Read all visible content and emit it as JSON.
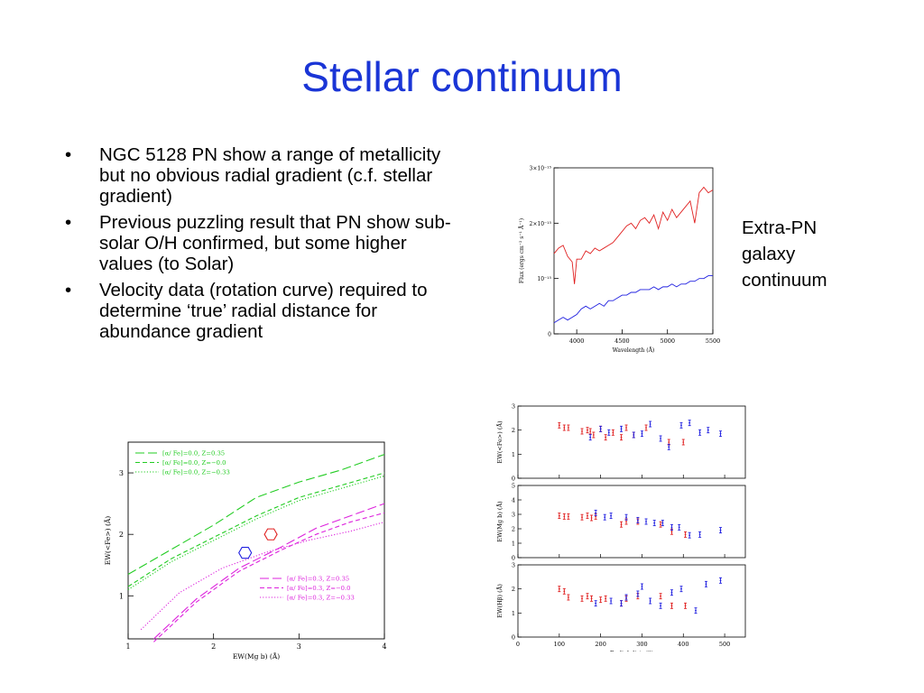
{
  "slide": {
    "title": "Stellar continuum",
    "bullets": [
      "NGC 5128 PN show a range of metallicity but no obvious radial gradient (c.f. stellar gradient)",
      "Previous puzzling result that PN show sub-solar O/H confirmed, but some higher values (to Solar)",
      "Velocity data (rotation curve) required to determine ‘true’ radial distance for abundance gradient"
    ],
    "bullet_marker": "•",
    "side_caption": "Extra-PN galaxy continuum"
  },
  "colors": {
    "title": "#1a35d6",
    "red": "#e02020",
    "blue": "#2020e0",
    "green": "#22cc22",
    "magenta": "#dd22dd"
  },
  "chart_data": [
    {
      "type": "line",
      "xlabel": "Wavelength (Å)",
      "ylabel": "Flux (ergs cm⁻² s⁻¹ Å⁻¹)",
      "x_ticks": [
        "4000",
        "4500",
        "5000",
        "5500"
      ],
      "y_ticks": [
        "0",
        "10⁻¹⁵",
        "2×10⁻¹⁵",
        "3×10⁻¹⁵"
      ],
      "xlim": [
        3750,
        5500
      ],
      "ylim": [
        0,
        3.0
      ],
      "grid": false,
      "series": [
        {
          "color": "#e02020",
          "x": [
            3750,
            3800,
            3850,
            3900,
            3950,
            3975,
            4000,
            4050,
            4100,
            4150,
            4200,
            4250,
            4300,
            4350,
            4400,
            4450,
            4500,
            4550,
            4600,
            4650,
            4700,
            4750,
            4800,
            4850,
            4900,
            4950,
            5000,
            5050,
            5100,
            5150,
            5200,
            5250,
            5300,
            5350,
            5400,
            5450,
            5500
          ],
          "values": [
            1.45,
            1.55,
            1.6,
            1.4,
            1.3,
            0.9,
            1.35,
            1.35,
            1.5,
            1.45,
            1.55,
            1.5,
            1.55,
            1.6,
            1.65,
            1.75,
            1.85,
            1.95,
            2.0,
            1.9,
            2.05,
            2.1,
            2.0,
            2.15,
            1.9,
            2.2,
            2.05,
            2.25,
            2.1,
            2.2,
            2.3,
            2.4,
            2.0,
            2.55,
            2.65,
            2.55,
            2.6
          ]
        },
        {
          "color": "#2020e0",
          "x": [
            3750,
            3800,
            3850,
            3900,
            3950,
            4000,
            4050,
            4100,
            4150,
            4200,
            4250,
            4300,
            4350,
            4400,
            4450,
            4500,
            4550,
            4600,
            4650,
            4700,
            4750,
            4800,
            4850,
            4900,
            4950,
            5000,
            5050,
            5100,
            5150,
            5200,
            5250,
            5300,
            5350,
            5400,
            5450,
            5500
          ],
          "values": [
            0.2,
            0.25,
            0.3,
            0.25,
            0.3,
            0.35,
            0.45,
            0.5,
            0.45,
            0.5,
            0.55,
            0.5,
            0.6,
            0.6,
            0.65,
            0.7,
            0.7,
            0.75,
            0.75,
            0.8,
            0.8,
            0.8,
            0.85,
            0.8,
            0.85,
            0.85,
            0.9,
            0.85,
            0.9,
            0.9,
            0.95,
            0.95,
            1.0,
            1.0,
            1.05,
            1.05
          ]
        }
      ]
    },
    {
      "type": "line",
      "xlabel": "EW(Mg b) (Å)",
      "ylabel": "EW(<Fe>) (Å)",
      "x_ticks": [
        "1",
        "2",
        "3",
        "4"
      ],
      "y_ticks": [
        "1",
        "2",
        "3"
      ],
      "xlim": [
        1,
        4
      ],
      "ylim": [
        0.3,
        3.5
      ],
      "grid": false,
      "legend_top": [
        {
          "label": "[α/ Fe]=0.0, Z=0.35",
          "color": "#22cc22",
          "dash": "long"
        },
        {
          "label": "[α/ Fe]=0.0, Z=−0.0",
          "color": "#22cc22",
          "dash": "short"
        },
        {
          "label": "[α/ Fe]=0.0, Z=−0.33",
          "color": "#22cc22",
          "dash": "dot"
        }
      ],
      "legend_bottom": [
        {
          "label": "[α/ Fe]=0.3, Z=0.35",
          "color": "#dd22dd",
          "dash": "long"
        },
        {
          "label": "[α/ Fe]=0.3, Z=−0.0",
          "color": "#dd22dd",
          "dash": "short"
        },
        {
          "label": "[α/ Fe]=0.3, Z=−0.33",
          "color": "#dd22dd",
          "dash": "dot"
        }
      ],
      "series": [
        {
          "color": "#22cc22",
          "dash": "long",
          "x": [
            1,
            1.5,
            2,
            2.5,
            3,
            3.5,
            4
          ],
          "values": [
            1.35,
            1.75,
            2.15,
            2.6,
            2.85,
            3.05,
            3.3
          ]
        },
        {
          "color": "#22cc22",
          "dash": "short",
          "x": [
            1,
            1.5,
            2,
            2.5,
            3,
            3.5,
            4
          ],
          "values": [
            1.15,
            1.6,
            1.95,
            2.3,
            2.6,
            2.8,
            3.0
          ]
        },
        {
          "color": "#22cc22",
          "dash": "dot",
          "x": [
            1,
            1.5,
            2,
            2.5,
            3,
            3.5,
            4
          ],
          "values": [
            1.1,
            1.55,
            1.9,
            2.25,
            2.55,
            2.75,
            2.95
          ]
        },
        {
          "color": "#dd22dd",
          "dash": "long",
          "x": [
            1.3,
            1.8,
            2.3,
            2.8,
            3.2,
            3.6,
            4
          ],
          "values": [
            0.3,
            0.95,
            1.45,
            1.8,
            2.1,
            2.3,
            2.5
          ]
        },
        {
          "color": "#dd22dd",
          "dash": "short",
          "x": [
            1.3,
            1.8,
            2.3,
            2.8,
            3.2,
            3.6,
            4
          ],
          "values": [
            0.25,
            0.9,
            1.4,
            1.75,
            2.0,
            2.2,
            2.35
          ]
        },
        {
          "color": "#dd22dd",
          "dash": "dot",
          "x": [
            1.15,
            1.6,
            2.1,
            2.6,
            3.1,
            3.6,
            4
          ],
          "values": [
            0.45,
            1.05,
            1.45,
            1.7,
            1.9,
            2.05,
            2.2
          ]
        }
      ],
      "markers": [
        {
          "shape": "hexagon",
          "color": "#e02020",
          "x": 2.67,
          "y": 2.0
        },
        {
          "shape": "hexagon",
          "color": "#2020e0",
          "x": 2.37,
          "y": 1.7
        }
      ]
    },
    {
      "type": "scatter",
      "xlabel": "Radial dist. ('')",
      "x_ticks": [
        "0",
        "100",
        "200",
        "300",
        "400",
        "500"
      ],
      "xlim": [
        0,
        550
      ],
      "panels": [
        {
          "ylabel": "EW(<Fe>) (Å)",
          "y_ticks": [
            "0",
            "1",
            "2",
            "3"
          ],
          "ylim": [
            0,
            3
          ],
          "series": [
            {
              "color": "#e02020",
              "x": [
                100,
                112,
                122,
                155,
                168,
                175,
                183,
                200,
                212,
                230,
                250,
                262,
                280,
                310,
                365,
                400
              ],
              "values": [
                2.2,
                2.1,
                2.1,
                1.95,
                2.0,
                1.95,
                1.8,
                2.05,
                1.7,
                1.9,
                1.7,
                2.1,
                1.8,
                2.1,
                1.5,
                1.5
              ]
            },
            {
              "color": "#2020e0",
              "x": [
                175,
                200,
                220,
                250,
                280,
                300,
                320,
                345,
                365,
                395,
                415,
                440,
                460,
                490
              ],
              "values": [
                1.7,
                2.05,
                1.9,
                2.05,
                1.8,
                1.85,
                2.25,
                1.65,
                1.3,
                2.2,
                2.3,
                1.9,
                2.0,
                1.85
              ]
            }
          ]
        },
        {
          "ylabel": "EW(Mg b) (Å)",
          "y_ticks": [
            "0",
            "1",
            "2",
            "3",
            "4",
            "5"
          ],
          "ylim": [
            0,
            5
          ],
          "series": [
            {
              "color": "#e02020",
              "x": [
                100,
                112,
                122,
                155,
                168,
                178,
                188,
                250,
                262,
                290,
                345,
                372,
                405
              ],
              "values": [
                2.9,
                2.85,
                2.85,
                2.8,
                2.9,
                2.75,
                2.85,
                2.3,
                2.5,
                2.5,
                2.3,
                1.8,
                1.6
              ]
            },
            {
              "color": "#2020e0",
              "x": [
                188,
                210,
                225,
                262,
                290,
                310,
                330,
                350,
                372,
                390,
                415,
                440,
                490
              ],
              "values": [
                3.1,
                2.8,
                2.9,
                2.8,
                2.6,
                2.5,
                2.4,
                2.4,
                2.1,
                2.1,
                1.55,
                1.6,
                1.9
              ]
            }
          ]
        },
        {
          "ylabel": "EW(Hβ) (Å)",
          "y_ticks": [
            "0",
            "1",
            "2",
            "3"
          ],
          "ylim": [
            0,
            3
          ],
          "series": [
            {
              "color": "#e02020",
              "x": [
                100,
                112,
                122,
                155,
                168,
                178,
                200,
                212,
                250,
                262,
                290,
                345,
                372,
                405
              ],
              "values": [
                2.0,
                1.9,
                1.65,
                1.6,
                1.7,
                1.6,
                1.55,
                1.6,
                1.4,
                1.6,
                1.7,
                1.7,
                1.3,
                1.3
              ]
            },
            {
              "color": "#2020e0",
              "x": [
                188,
                225,
                250,
                262,
                290,
                300,
                320,
                345,
                372,
                395,
                430,
                455,
                490
              ],
              "values": [
                1.4,
                1.5,
                1.4,
                1.65,
                1.8,
                2.1,
                1.5,
                1.3,
                1.85,
                2.0,
                1.1,
                2.2,
                2.35
              ]
            }
          ]
        }
      ]
    }
  ]
}
